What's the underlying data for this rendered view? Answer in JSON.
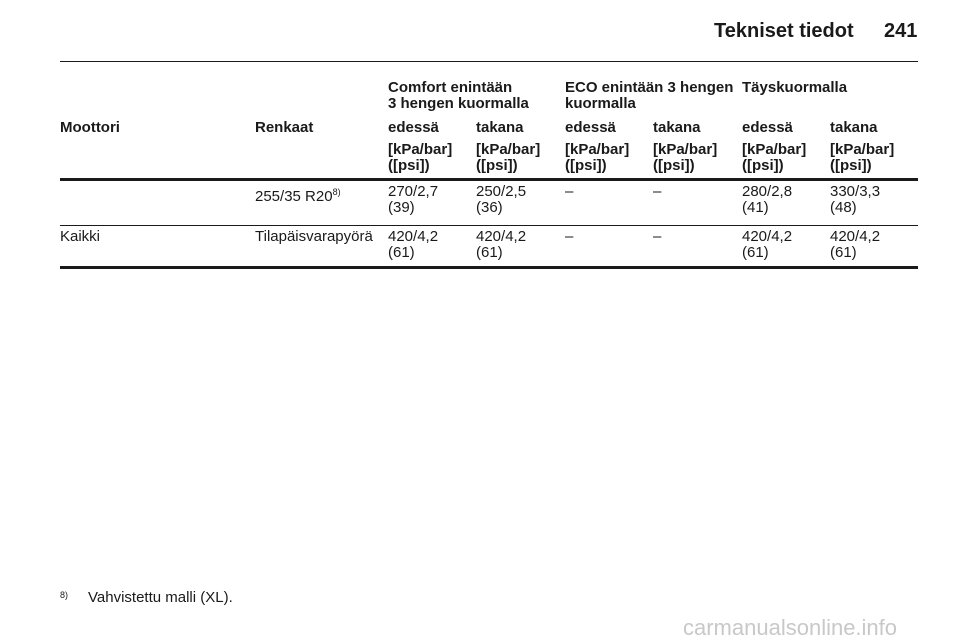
{
  "header": {
    "title": "Tekniset tiedot",
    "page": "241"
  },
  "table": {
    "groups": [
      "Comfort enintään\n3 hengen kuormalla",
      "ECO enintään 3 hengen\nkuormalla",
      "Täyskuormalla"
    ],
    "columns": [
      "Moottori",
      "Renkaat",
      "edessä",
      "takana",
      "edessä",
      "takana",
      "edessä",
      "takana"
    ],
    "units": [
      "[kPa/bar]\n([psi])",
      "[kPa/bar]\n([psi])",
      "[kPa/bar]\n([psi])",
      "[kPa/bar]\n([psi])",
      "[kPa/bar]\n([psi])",
      "[kPa/bar]\n([psi])"
    ],
    "rows": [
      {
        "tire": "255/35 R20",
        "tire_note": "8)",
        "values": [
          "270/2,7\n(39)",
          "250/2,5\n(36)",
          "–",
          "–",
          "280/2,8\n(41)",
          "330/3,3\n(48)"
        ]
      },
      {
        "engine": "Kaikki",
        "tire": "Tilapäisvarapyörä",
        "values": [
          "420/4,2\n(61)",
          "420/4,2\n(61)",
          "–",
          "–",
          "420/4,2\n(61)",
          "420/4,2\n(61)"
        ]
      }
    ]
  },
  "footnote": {
    "marker": "8)",
    "text": "Vahvistettu malli (XL)."
  },
  "watermark": "carmanualsonline.info"
}
